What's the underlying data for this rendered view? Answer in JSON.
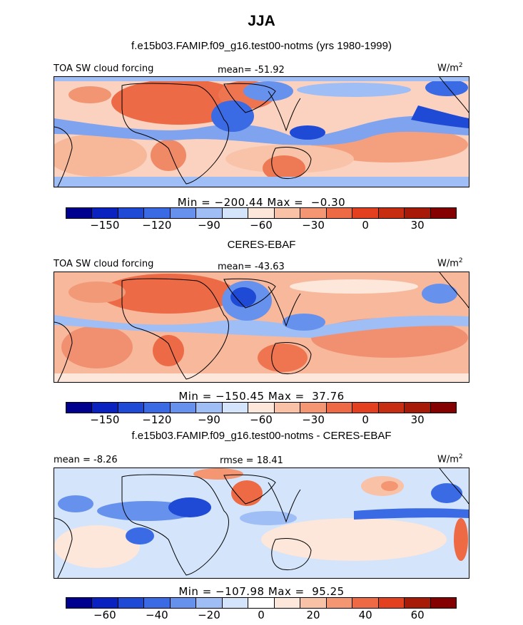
{
  "figure": {
    "title": "JJA",
    "panels": [
      {
        "title": "f.e15b03.FAMIP.f09_g16.test00-notms (yrs 1980-1999)",
        "left_label": "TOA SW cloud forcing",
        "center_label": "mean= -51.92",
        "units": "W/m",
        "units_exp": "2",
        "min_max_text": "Min = −200.44 Max =  −0.30",
        "colorbar": {
          "ticks": [
            "−150",
            "−120",
            "−90",
            "−60",
            "−30",
            "0",
            "30"
          ],
          "colors": [
            "#00008f",
            "#0a22c0",
            "#1e4ad6",
            "#3a6be4",
            "#6692ee",
            "#9fbef6",
            "#d3e4fb",
            "#fde6da",
            "#f9c2a6",
            "#f49672",
            "#ed6a44",
            "#e2401e",
            "#c72d10",
            "#a81a08",
            "#850000"
          ]
        }
      },
      {
        "title": "CERES-EBAF",
        "left_label": "TOA SW cloud forcing",
        "center_label": "mean= -43.63",
        "units": "W/m",
        "units_exp": "2",
        "min_max_text": "Min = −150.45 Max =  37.76",
        "colorbar": {
          "ticks": [
            "−150",
            "−120",
            "−90",
            "−60",
            "−30",
            "0",
            "30"
          ],
          "colors": [
            "#00008f",
            "#0a22c0",
            "#1e4ad6",
            "#3a6be4",
            "#6692ee",
            "#9fbef6",
            "#d3e4fb",
            "#fde6da",
            "#f9c2a6",
            "#f49672",
            "#ed6a44",
            "#e2401e",
            "#c72d10",
            "#a81a08",
            "#850000"
          ]
        }
      },
      {
        "title": "f.e15b03.FAMIP.f09_g16.test00-notms - CERES-EBAF",
        "left_label": "mean =  -8.26",
        "center_label": "rmse =  18.41",
        "units": "W/m",
        "units_exp": "2",
        "min_max_text": "Min = −107.98 Max =  95.25",
        "colorbar": {
          "ticks": [
            "−60",
            "−40",
            "−20",
            "0",
            "20",
            "40",
            "60"
          ],
          "colors": [
            "#00008f",
            "#0a22c0",
            "#1e4ad6",
            "#3a6be4",
            "#6692ee",
            "#9fbef6",
            "#d3e4fb",
            "#ffffff",
            "#fde6da",
            "#f9c2a6",
            "#f49672",
            "#ed6a44",
            "#e2401e",
            "#a81a08",
            "#850000"
          ]
        }
      }
    ]
  },
  "chart_data": [
    {
      "type": "heatmap",
      "title": "f.e15b03.FAMIP.f09_g16.test00-notms (yrs 1980-1999)",
      "variable": "TOA SW cloud forcing",
      "units": "W/m2",
      "mean": -51.92,
      "min": -200.44,
      "max": -0.3,
      "colorbar_levels": [
        -150,
        -120,
        -90,
        -60,
        -30,
        0,
        30
      ]
    },
    {
      "type": "heatmap",
      "title": "CERES-EBAF",
      "variable": "TOA SW cloud forcing",
      "units": "W/m2",
      "mean": -43.63,
      "min": -150.45,
      "max": 37.76,
      "colorbar_levels": [
        -150,
        -120,
        -90,
        -60,
        -30,
        0,
        30
      ]
    },
    {
      "type": "heatmap",
      "title": "f.e15b03.FAMIP.f09_g16.test00-notms - CERES-EBAF",
      "units": "W/m2",
      "mean": -8.26,
      "rmse": 18.41,
      "min": -107.98,
      "max": 95.25,
      "colorbar_levels": [
        -60,
        -40,
        -20,
        0,
        20,
        40,
        60
      ]
    }
  ]
}
